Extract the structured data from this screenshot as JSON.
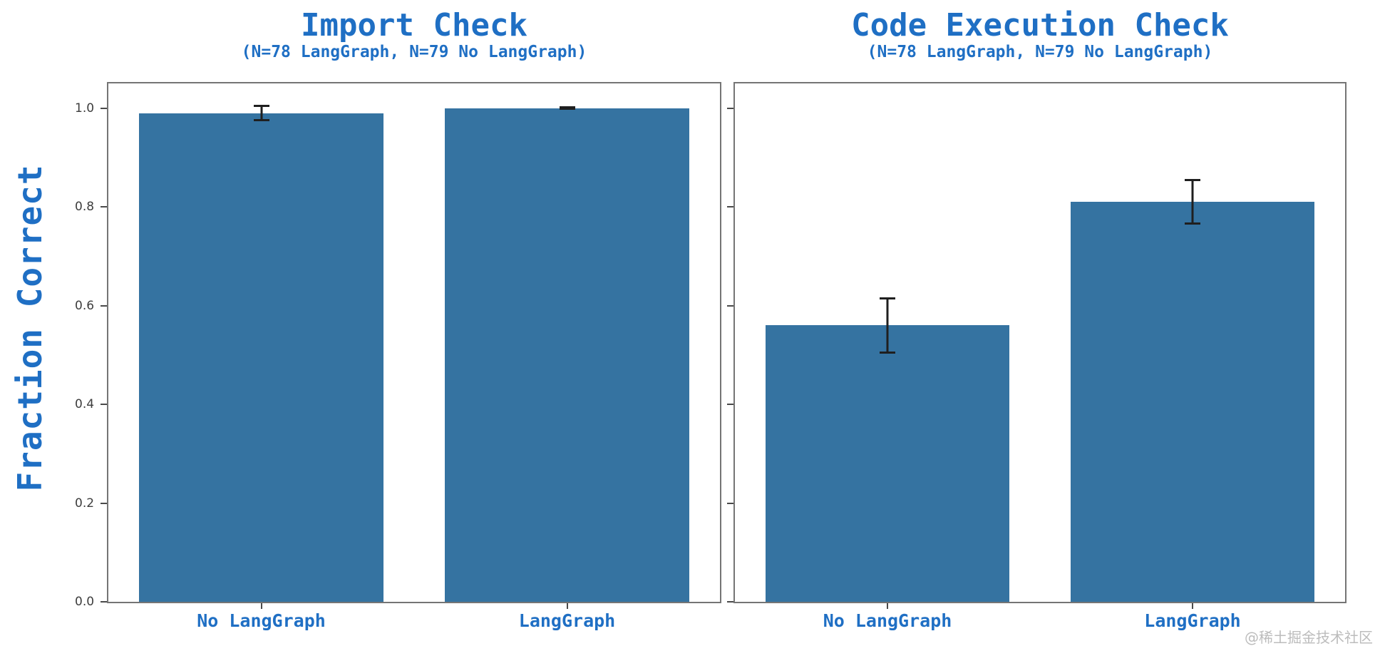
{
  "ylabel": "Fraction Correct",
  "watermark": "@稀土掘金技术社区",
  "colors": {
    "bar": "#3573a1",
    "accent_text": "#1f6fc4",
    "axis_line": "#757575",
    "tick_mark": "#4a4a4a",
    "tick_label": "#3d3d3d",
    "error_bar": "#1f1f1f",
    "watermark": "#bcbcbc"
  },
  "chart_data": [
    {
      "type": "bar",
      "title": "Import Check",
      "subtitle": "(N=78 LangGraph, N=79 No LangGraph)",
      "categories": [
        "No LangGraph",
        "LangGraph"
      ],
      "values": [
        0.99,
        1.0
      ],
      "errors": [
        0.015,
        0.002
      ],
      "ylabel": "Fraction Correct",
      "ylim": [
        0,
        1.05
      ],
      "yticks": [
        0.0,
        0.2,
        0.4,
        0.6,
        0.8,
        1.0
      ],
      "ytick_labels": [
        "0.0",
        "0.2",
        "0.4",
        "0.6",
        "0.8",
        "1.0"
      ],
      "ytick_labels_visible": true,
      "grid": false,
      "legend": null
    },
    {
      "type": "bar",
      "title": "Code Execution Check",
      "subtitle": "(N=78 LangGraph, N=79 No LangGraph)",
      "categories": [
        "No LangGraph",
        "LangGraph"
      ],
      "values": [
        0.56,
        0.81
      ],
      "errors": [
        0.056,
        0.045
      ],
      "ylabel": "",
      "ylim": [
        0,
        1.05
      ],
      "yticks": [
        0.0,
        0.2,
        0.4,
        0.6,
        0.8,
        1.0
      ],
      "ytick_labels": [
        "0.0",
        "0.2",
        "0.4",
        "0.6",
        "0.8",
        "1.0"
      ],
      "ytick_labels_visible": false,
      "grid": false,
      "legend": null
    }
  ]
}
